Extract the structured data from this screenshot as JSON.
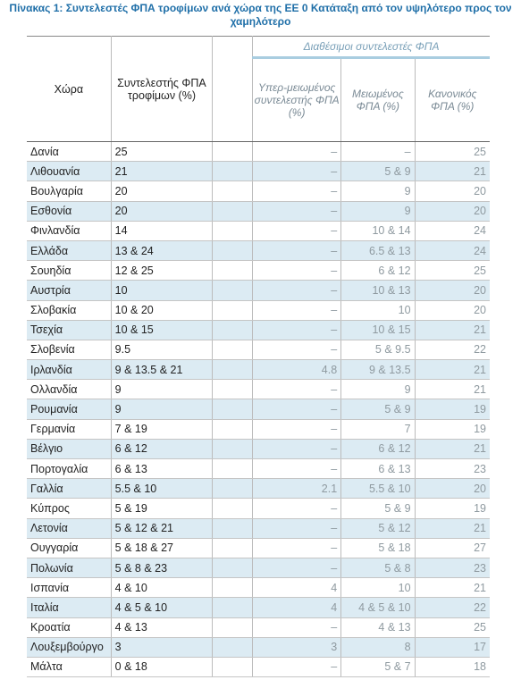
{
  "title": "Πίνακας 1: Συντελεστές ΦΠΑ τροφίμων ανά χώρα της ΕΕ 0 Κατάταξη από τον υψηλότερο προς τον χαμηλότερο",
  "table": {
    "group_header": "Διαθέσιμοι συντελεστές ΦΠΑ",
    "headers": [
      "Χώρα",
      "Συντελεστής ΦΠΑ τροφίμων (%)",
      "Υπερ-μειωμένος συντελεστής ΦΠΑ (%)",
      "Μειωμένος ΦΠΑ (%)",
      "Κανονικός ΦΠΑ (%)"
    ],
    "rows": [
      [
        "Δανία",
        "25",
        "–",
        "–",
        "25"
      ],
      [
        "Λιθουανία",
        "21",
        "–",
        "5 & 9",
        "21"
      ],
      [
        "Βουλγαρία",
        "20",
        "–",
        "9",
        "20"
      ],
      [
        "Εσθονία",
        "20",
        "–",
        "9",
        "20"
      ],
      [
        "Φινλανδία",
        "14",
        "–",
        "10 & 14",
        "24"
      ],
      [
        "Ελλάδα",
        "13 & 24",
        "–",
        "6.5 & 13",
        "24"
      ],
      [
        "Σουηδία",
        "12 & 25",
        "–",
        "6 & 12",
        "25"
      ],
      [
        "Αυστρία",
        "10",
        "–",
        "10 & 13",
        "20"
      ],
      [
        "Σλοβακία",
        "10 & 20",
        "–",
        "10",
        "20"
      ],
      [
        "Τσεχία",
        "10 & 15",
        "–",
        "10 & 15",
        "21"
      ],
      [
        "Σλοβενία",
        "9.5",
        "–",
        "5 & 9.5",
        "22"
      ],
      [
        "Ιρλανδία",
        "9 & 13.5 & 21",
        "4.8",
        "9 & 13.5",
        "21"
      ],
      [
        "Ολλανδία",
        "9",
        "–",
        "9",
        "21"
      ],
      [
        "Ρουμανία",
        "9",
        "–",
        "5 & 9",
        "19"
      ],
      [
        "Γερμανία",
        "7 & 19",
        "–",
        "7",
        "19"
      ],
      [
        "Βέλγιο",
        "6 & 12",
        "–",
        "6 & 12",
        "21"
      ],
      [
        "Πορτογαλία",
        "6 & 13",
        "–",
        "6 & 13",
        "23"
      ],
      [
        "Γαλλία",
        "5.5 & 10",
        "2.1",
        "5.5 & 10",
        "20"
      ],
      [
        "Κύπρος",
        "5 & 19",
        "–",
        "5 & 9",
        "19"
      ],
      [
        "Λετονία",
        "5 & 12 & 21",
        "–",
        "5 & 12",
        "21"
      ],
      [
        "Ουγγαρία",
        "5 & 18 & 27",
        "–",
        "5 & 18",
        "27"
      ],
      [
        "Πολωνία",
        "5 & 8 & 23",
        "–",
        "5 & 8",
        "23"
      ],
      [
        "Ισπανία",
        "4 & 10",
        "4",
        "10",
        "21"
      ],
      [
        "Ιταλία",
        "4 & 5 & 10",
        "4",
        "4 & 5 & 10",
        "22"
      ],
      [
        "Κροατία",
        "4 & 13",
        "–",
        "4 & 13",
        "25"
      ],
      [
        "Λουξεμβούργο",
        "3",
        "3",
        "8",
        "17"
      ],
      [
        "Μάλτα",
        "0 & 18",
        "–",
        "5 & 7",
        "18"
      ]
    ]
  }
}
